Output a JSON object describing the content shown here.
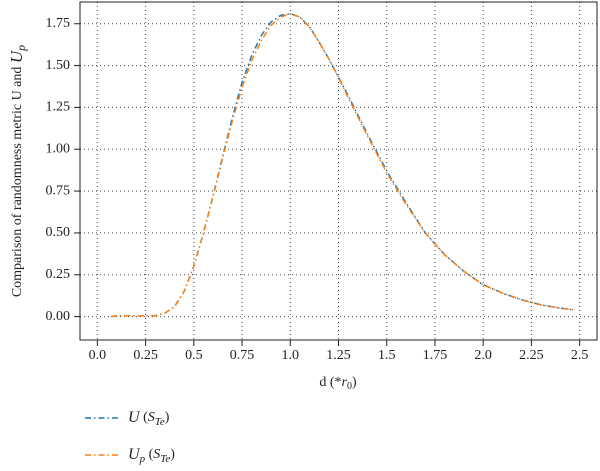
{
  "chart_data": {
    "type": "line",
    "ylabel": [
      "Comparison of randomness metric U and ",
      "U",
      "p"
    ],
    "xlabel": [
      "d (*",
      "r",
      "0",
      ")"
    ],
    "x": [
      0.07,
      0.1,
      0.2,
      0.3,
      0.35,
      0.4,
      0.45,
      0.5,
      0.55,
      0.6,
      0.65,
      0.7,
      0.75,
      0.8,
      0.85,
      0.9,
      0.95,
      1.0,
      1.05,
      1.1,
      1.15,
      1.2,
      1.25,
      1.3,
      1.4,
      1.5,
      1.6,
      1.7,
      1.8,
      1.9,
      2.0,
      2.1,
      2.2,
      2.3,
      2.4,
      2.47
    ],
    "series": [
      {
        "name": [
          "U",
          " (",
          "S",
          "Te",
          ")"
        ],
        "color": "#1f77b4",
        "values": [
          0.0,
          0.005,
          0.005,
          0.005,
          0.02,
          0.06,
          0.15,
          0.3,
          0.5,
          0.72,
          0.96,
          1.19,
          1.4,
          1.56,
          1.68,
          1.76,
          1.8,
          1.81,
          1.79,
          1.73,
          1.64,
          1.54,
          1.43,
          1.32,
          1.09,
          0.87,
          0.68,
          0.5,
          0.37,
          0.27,
          0.19,
          0.14,
          0.1,
          0.07,
          0.05,
          0.04
        ]
      },
      {
        "name": [
          "U",
          "p",
          " (",
          "S",
          "Te",
          ")"
        ],
        "color": "#ff7f0e",
        "values": [
          0.0,
          0.005,
          0.005,
          0.005,
          0.02,
          0.06,
          0.15,
          0.3,
          0.5,
          0.72,
          0.95,
          1.17,
          1.37,
          1.53,
          1.65,
          1.74,
          1.79,
          1.81,
          1.79,
          1.73,
          1.64,
          1.54,
          1.43,
          1.31,
          1.08,
          0.86,
          0.67,
          0.5,
          0.37,
          0.27,
          0.19,
          0.14,
          0.1,
          0.07,
          0.05,
          0.04
        ]
      }
    ],
    "xlim": [
      -0.09,
      2.59
    ],
    "xticks": [
      {
        "value": 0,
        "label": "0.0"
      },
      0.25,
      0.5,
      0.75,
      {
        "value": 1,
        "label": "1.0"
      },
      1.25,
      1.5,
      1.75,
      {
        "value": 2,
        "label": "2.0"
      },
      2.25,
      2.5
    ],
    "ylim": [
      -0.14,
      1.88
    ],
    "yticks": [
      {
        "value": 0,
        "label": "0.00"
      },
      0.25,
      {
        "value": 0.5,
        "label": "0.50"
      },
      0.75,
      {
        "value": 1,
        "label": "1.00"
      },
      1.25,
      {
        "value": 1.5,
        "label": "1.50"
      },
      1.75
    ],
    "grid": true
  }
}
